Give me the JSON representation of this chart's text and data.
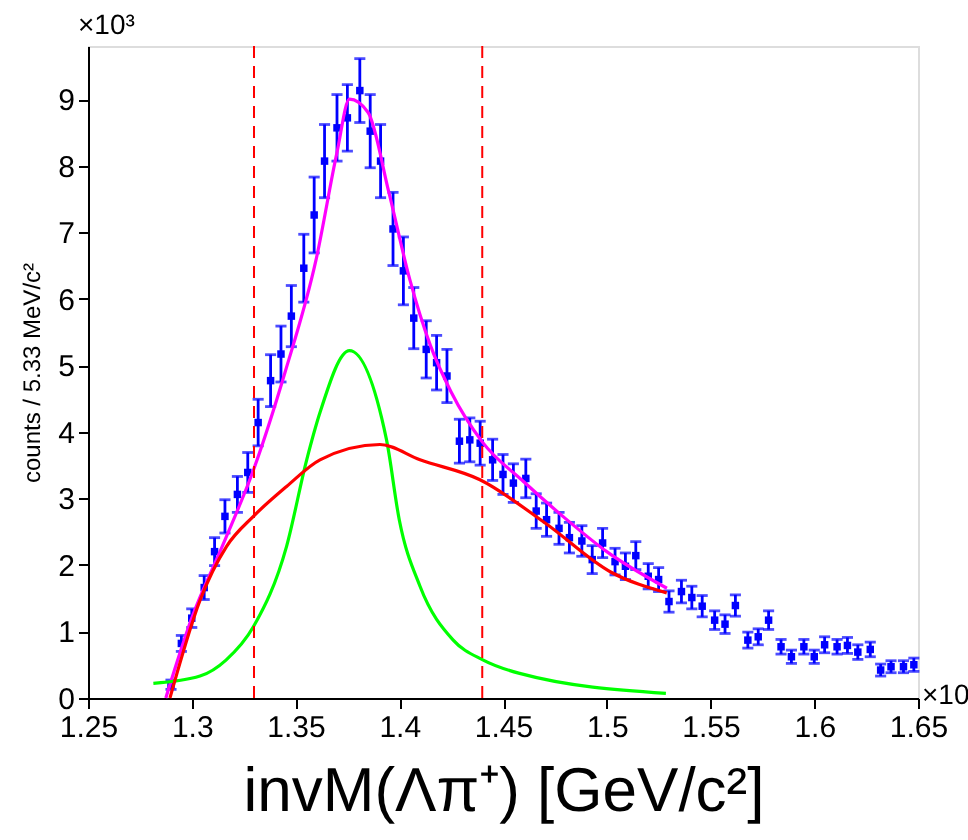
{
  "chart_data": {
    "type": "scatter",
    "xlabel": "invM(Λπ⁺) [GeV/c²]",
    "ylabel": "counts / 5.33 MeV/c²",
    "annotations": [
      "×10³",
      "×10"
    ],
    "xlim": [
      1.25,
      1.65
    ],
    "xticks": [
      1.25,
      1.3,
      1.35,
      1.4,
      1.45,
      1.5,
      1.55,
      1.6,
      1.65
    ],
    "ylim": [
      0,
      9.8
    ],
    "yticks": [
      0,
      1,
      2,
      3,
      4,
      5,
      6,
      7,
      8,
      9
    ],
    "grid": false,
    "marker": "square",
    "x": [
      1.29,
      1.295,
      1.3,
      1.306,
      1.311,
      1.316,
      1.322,
      1.327,
      1.332,
      1.338,
      1.343,
      1.348,
      1.354,
      1.359,
      1.364,
      1.37,
      1.375,
      1.381,
      1.386,
      1.391,
      1.397,
      1.402,
      1.407,
      1.413,
      1.418,
      1.423,
      1.429,
      1.434,
      1.439,
      1.445,
      1.45,
      1.455,
      1.461,
      1.466,
      1.471,
      1.477,
      1.482,
      1.488,
      1.493,
      1.498,
      1.504,
      1.509,
      1.514,
      1.52,
      1.525,
      1.53,
      1.536,
      1.541,
      1.546,
      1.552,
      1.557,
      1.562,
      1.568,
      1.573,
      1.578,
      1.584,
      1.589,
      1.595,
      1.6,
      1.605,
      1.611,
      1.616,
      1.621,
      1.627,
      1.632,
      1.637,
      1.643,
      1.648
    ],
    "series": [
      {
        "color": "#0000ff",
        "values": [
          0.2,
          0.82,
          1.2,
          1.66,
          2.2,
          2.73,
          3.06,
          3.39,
          4.14,
          4.77,
          5.17,
          5.74,
          6.46,
          7.26,
          8.07,
          8.57,
          8.72,
          9.13,
          8.52,
          8.07,
          7.05,
          6.42,
          5.71,
          5.24,
          5.04,
          4.84,
          3.86,
          3.88,
          3.83,
          3.58,
          3.36,
          3.23,
          3.3,
          2.81,
          2.68,
          2.55,
          2.41,
          2.36,
          2.08,
          2.33,
          2.05,
          1.98,
          2.14,
          1.83,
          1.78,
          1.45,
          1.6,
          1.51,
          1.38,
          1.17,
          1.11,
          1.39,
          0.87,
          0.92,
          1.17,
          0.77,
          0.62,
          0.77,
          0.62,
          0.8,
          0.77,
          0.79,
          0.69,
          0.73,
          0.42,
          0.47,
          0.47,
          0.5
        ],
        "errors": [
          0.07,
          0.12,
          0.14,
          0.18,
          0.21,
          0.25,
          0.27,
          0.3,
          0.35,
          0.39,
          0.42,
          0.46,
          0.51,
          0.57,
          0.55,
          0.5,
          0.5,
          0.48,
          0.55,
          0.55,
          0.55,
          0.51,
          0.46,
          0.43,
          0.41,
          0.4,
          0.33,
          0.33,
          0.33,
          0.31,
          0.3,
          0.29,
          0.29,
          0.26,
          0.25,
          0.24,
          0.23,
          0.23,
          0.21,
          0.22,
          0.2,
          0.2,
          0.21,
          0.19,
          0.18,
          0.16,
          0.17,
          0.17,
          0.16,
          0.14,
          0.14,
          0.16,
          0.12,
          0.12,
          0.14,
          0.11,
          0.1,
          0.11,
          0.1,
          0.12,
          0.11,
          0.12,
          0.11,
          0.11,
          0.09,
          0.09,
          0.09,
          0.1
        ]
      },
      {
        "type": "line",
        "marker": "none",
        "color": "#ff00ff",
        "x": [
          1.2875,
          1.3,
          1.315,
          1.33,
          1.345,
          1.36,
          1.37,
          1.376,
          1.385,
          1.395,
          1.405,
          1.415,
          1.425,
          1.44,
          1.46,
          1.48,
          1.5,
          1.529
        ],
        "values": [
          0,
          1.2,
          2.3,
          3.45,
          4.9,
          6.6,
          8.2,
          9.0,
          8.8,
          7.6,
          6.3,
          5.3,
          4.6,
          3.85,
          3.25,
          2.7,
          2.2,
          1.65
        ]
      },
      {
        "type": "line",
        "marker": "none",
        "color": "#00ff00",
        "x": [
          1.2815,
          1.304,
          1.3165,
          1.3297,
          1.3457,
          1.3554,
          1.3618,
          1.376,
          1.3938,
          1.4,
          1.41,
          1.426,
          1.4405,
          1.458,
          1.5285
        ],
        "values": [
          0.22,
          0.33,
          0.57,
          1.07,
          2.28,
          3.58,
          4.29,
          5.22,
          3.89,
          2.68,
          1.68,
          0.87,
          0.57,
          0.37,
          0.07
        ]
      },
      {
        "type": "line",
        "marker": "none",
        "color": "#ff0000",
        "x": [
          1.2895,
          1.304,
          1.3168,
          1.3297,
          1.3457,
          1.3618,
          1.3907,
          1.41,
          1.4389,
          1.4703,
          1.5021,
          1.5289
        ],
        "values": [
          0,
          1.47,
          2.28,
          2.73,
          3.18,
          3.58,
          3.81,
          3.58,
          3.28,
          2.63,
          1.89,
          1.58
        ]
      }
    ],
    "ref_lines": [
      {
        "axis": "x",
        "value": 1.33,
        "color": "#ff0000",
        "line_style": "dashed"
      },
      {
        "axis": "x",
        "value": 1.44,
        "color": "#ff0000",
        "line_style": "dashed"
      }
    ]
  }
}
